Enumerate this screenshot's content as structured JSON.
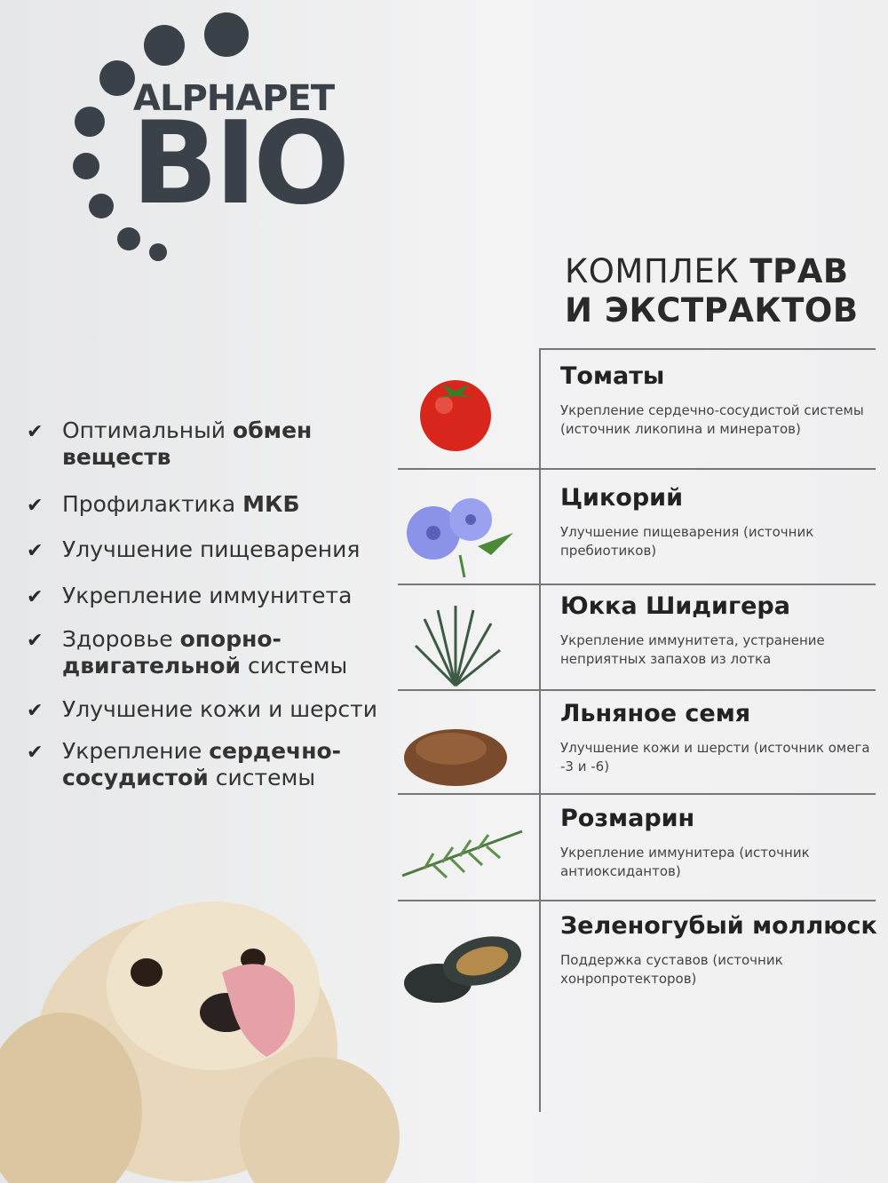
{
  "logo": {
    "line1": "ALPHAPET",
    "line2": "BIO"
  },
  "heading": {
    "part1": "КОМПЛЕК ",
    "part1_bold": "ТРАВ",
    "part2": "И ЭКСТРАКТОВ"
  },
  "benefits": [
    {
      "html": "Оптимальный <b>обмен веществ</b>"
    },
    {
      "html": "Профилактика <b>МКБ</b>"
    },
    {
      "html": "Улучшение пищеварения"
    },
    {
      "html": "Укрепление иммунитета"
    },
    {
      "html": "Здоровье <b>опорно-двигательной</b> системы"
    },
    {
      "html": "Улучшение кожи и шерсти"
    },
    {
      "html": "Укрепление <b>сердечно-сосудистой</b> системы"
    }
  ],
  "ingredients": [
    {
      "title": "Томаты",
      "desc": "Укрепление сердечно-сосудистой системы (источник ликопина и минератов)",
      "icon": "tomato-icon"
    },
    {
      "title": "Цикорий",
      "desc": "Улучшение пищеварения (источник пребиотиков)",
      "icon": "chicory-flower-icon"
    },
    {
      "title": "Юкка Шидигера",
      "desc": "Укрепление иммунитета, устранение неприятных запахов из лотка",
      "icon": "yucca-icon"
    },
    {
      "title": "Льняное семя",
      "desc": "Улучшение кожи и шерсти (источник омега -3 и -6)",
      "icon": "flax-seed-icon"
    },
    {
      "title": "Розмарин",
      "desc": "Укрепление иммунитера (источник антиоксидантов)",
      "icon": "rosemary-icon"
    },
    {
      "title": "Зеленогубый моллюск",
      "desc": "Поддержка суставов (источник хонропротекторов)",
      "icon": "mussel-icon"
    }
  ],
  "colors": {
    "logo": "#3a4149",
    "text": "#2b2b2b",
    "divider": "#777777"
  }
}
